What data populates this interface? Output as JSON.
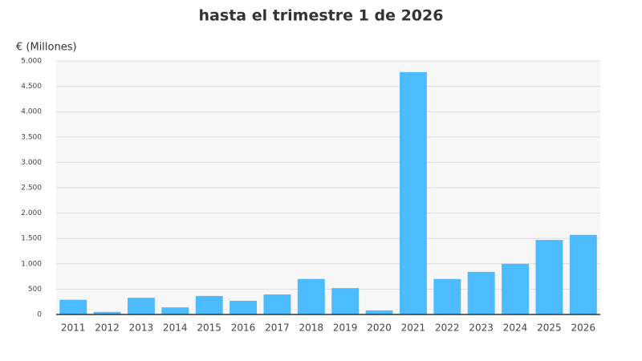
{
  "chart_data": {
    "type": "bar",
    "title": "hasta el trimestre 1 de 2026",
    "y_label": "€ (Millones)",
    "categories": [
      "2011",
      "2012",
      "2013",
      "2014",
      "2015",
      "2016",
      "2017",
      "2018",
      "2019",
      "2020",
      "2021",
      "2022",
      "2023",
      "2024",
      "2025",
      "2026"
    ],
    "values": [
      290,
      50,
      330,
      140,
      365,
      270,
      395,
      700,
      520,
      80,
      4780,
      700,
      840,
      1000,
      1470,
      1570
    ],
    "color": "#4dbbff",
    "ylim": [
      0,
      5000
    ],
    "yticks": [
      0,
      500,
      {
        "value": 1000,
        "label": "1.000"
      },
      {
        "value": 1500,
        "label": "1.500"
      },
      {
        "value": 2000,
        "label": "2.000"
      },
      {
        "value": 2500,
        "label": "2.500"
      },
      {
        "value": 3000,
        "label": "3.000"
      },
      {
        "value": 3500,
        "label": "3.500"
      },
      {
        "value": 4000,
        "label": "4.000"
      },
      {
        "value": 4500,
        "label": "4.500"
      },
      {
        "value": 5000,
        "label": "5.000"
      }
    ],
    "grid": true
  }
}
